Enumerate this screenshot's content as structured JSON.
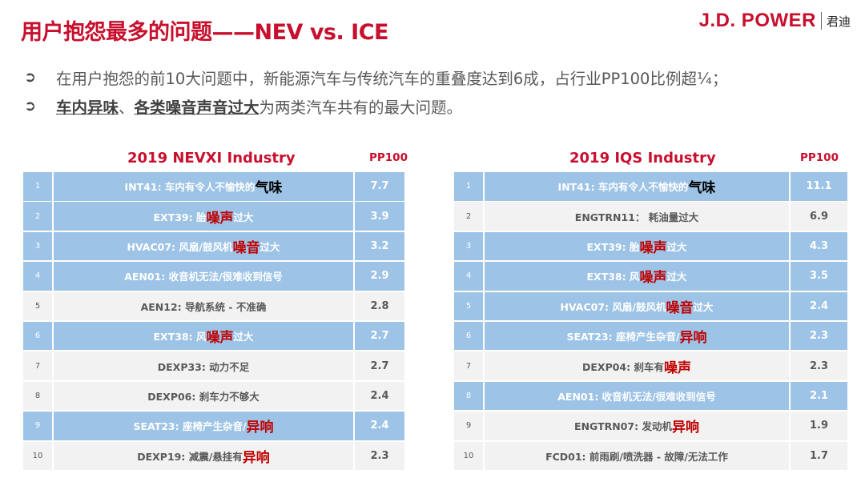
{
  "title": "用户抱怨最多的问题——NEV vs. ICE",
  "logo": {
    "brand": "J.D. POWER",
    "cn": "君迪"
  },
  "bullets": {
    "b1": "在用户抱怨的前10大问题中，新能源汽车与传统汽车的重叠度达到6成，占行业PP100比例超¼；",
    "b2_u1": "车内异味",
    "b2_sep": "、",
    "b2_u2": "各类噪音声音过大",
    "b2_rest": "为两类汽车共有的最大问题。"
  },
  "left_table": {
    "title": "2019 NEVXI Industry",
    "pp_header": "PP100",
    "rows": [
      {
        "rank": "1",
        "code": "INT41: 车内有令人不愉快的",
        "em": "气味",
        "tail": "",
        "value": "7.7",
        "hl": true,
        "emdark": true
      },
      {
        "rank": "2",
        "code": "EXT39: 胎",
        "em": "噪声",
        "tail": "过大",
        "value": "3.9",
        "hl": true,
        "emdark": false
      },
      {
        "rank": "3",
        "code": "HVAC07: 风扇/鼓风机",
        "em": "噪音",
        "tail": "过大",
        "value": "3.2",
        "hl": true,
        "emdark": false
      },
      {
        "rank": "4",
        "code": "AEN01: 收音机无法/很难收到信号",
        "em": "",
        "tail": "",
        "value": "2.9",
        "hl": true,
        "emdark": false
      },
      {
        "rank": "5",
        "code": "AEN12: 导航系统 - 不准确",
        "em": "",
        "tail": "",
        "value": "2.8",
        "hl": false,
        "emdark": false
      },
      {
        "rank": "6",
        "code": "EXT38: 风",
        "em": "噪声",
        "tail": "过大",
        "value": "2.7",
        "hl": true,
        "emdark": false
      },
      {
        "rank": "7",
        "code": "DEXP33: 动力不足",
        "em": "",
        "tail": "",
        "value": "2.7",
        "hl": false,
        "emdark": false
      },
      {
        "rank": "8",
        "code": "DEXP06: 刹车力不够大",
        "em": "",
        "tail": "",
        "value": "2.4",
        "hl": false,
        "emdark": false
      },
      {
        "rank": "9",
        "code": "SEAT23: 座椅产生杂音/",
        "em": "异响",
        "tail": "",
        "value": "2.4",
        "hl": true,
        "emdark": false
      },
      {
        "rank": "10",
        "code": "DEXP19: 减震/悬挂有",
        "em": "异响",
        "tail": "",
        "value": "2.3",
        "hl": false,
        "emdark": false
      }
    ]
  },
  "right_table": {
    "title": "2019 IQS Industry",
    "pp_header": "PP100",
    "rows": [
      {
        "rank": "1",
        "code": "INT41: 车内有令人不愉快的",
        "em": "气味",
        "tail": "",
        "value": "11.1",
        "hl": true,
        "emdark": true
      },
      {
        "rank": "2",
        "code": "ENGTRN11： 耗油量过大",
        "em": "",
        "tail": "",
        "value": "6.9",
        "hl": false,
        "emdark": false
      },
      {
        "rank": "3",
        "code": "EXT39: 胎",
        "em": "噪声",
        "tail": "过大",
        "value": "4.3",
        "hl": true,
        "emdark": false
      },
      {
        "rank": "4",
        "code": "EXT38: 风",
        "em": "噪声",
        "tail": "过大",
        "value": "3.5",
        "hl": true,
        "emdark": false
      },
      {
        "rank": "5",
        "code": "HVAC07: 风扇/鼓风机",
        "em": "噪音",
        "tail": "过大",
        "value": "2.4",
        "hl": true,
        "emdark": false
      },
      {
        "rank": "6",
        "code": "SEAT23: 座椅产生杂音/",
        "em": "异响",
        "tail": "",
        "value": "2.3",
        "hl": true,
        "emdark": false
      },
      {
        "rank": "7",
        "code": "DEXP04: 刹车有",
        "em": "噪声",
        "tail": "",
        "value": "2.3",
        "hl": false,
        "emdark": false
      },
      {
        "rank": "8",
        "code": "AEN01: 收音机无法/很难收到信号",
        "em": "",
        "tail": "",
        "value": "2.1",
        "hl": true,
        "emdark": false
      },
      {
        "rank": "9",
        "code": "ENGTRN07: 发动机",
        "em": "异响",
        "tail": "",
        "value": "1.9",
        "hl": false,
        "emdark": false
      },
      {
        "rank": "10",
        "code": "FCD01: 前雨刷/喷洗器 - 故障/无法工作",
        "em": "",
        "tail": "",
        "value": "1.7",
        "hl": false,
        "emdark": false
      }
    ]
  }
}
